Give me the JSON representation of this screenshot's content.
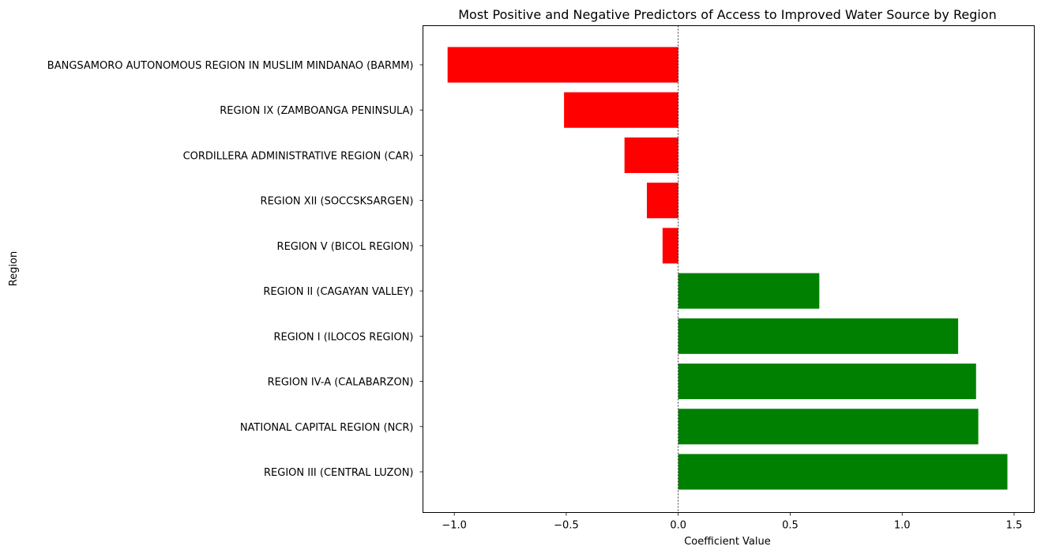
{
  "chart_data": {
    "type": "bar",
    "orientation": "horizontal",
    "title": "Most Positive and Negative Predictors of Access to Improved Water Source by Region",
    "xlabel": "Coefficient Value",
    "ylabel": "Region",
    "categories": [
      "BANGSAMORO AUTONOMOUS REGION IN MUSLIM MINDANAO (BARMM)",
      "REGION IX (ZAMBOANGA PENINSULA)",
      "CORDILLERA ADMINISTRATIVE REGION (CAR)",
      "REGION XII (SOCCSKSARGEN)",
      "REGION V (BICOL REGION)",
      "REGION II (CAGAYAN VALLEY)",
      "REGION I (ILOCOS REGION)",
      "REGION IV-A (CALABARZON)",
      "NATIONAL CAPITAL REGION (NCR)",
      "REGION III (CENTRAL LUZON)"
    ],
    "values": [
      -1.03,
      -0.51,
      -0.24,
      -0.14,
      -0.07,
      0.63,
      1.25,
      1.33,
      1.34,
      1.47
    ],
    "xlim": [
      -1.14,
      1.59
    ],
    "xticks": [
      -1.0,
      -0.5,
      0.0,
      0.5,
      1.0,
      1.5
    ],
    "xtick_labels": [
      "−1.0",
      "−0.5",
      "0.0",
      "0.5",
      "1.0",
      "1.5"
    ],
    "colors": {
      "negative": "#ff0000",
      "positive": "#008000"
    },
    "zero_line": true,
    "grid": false
  }
}
